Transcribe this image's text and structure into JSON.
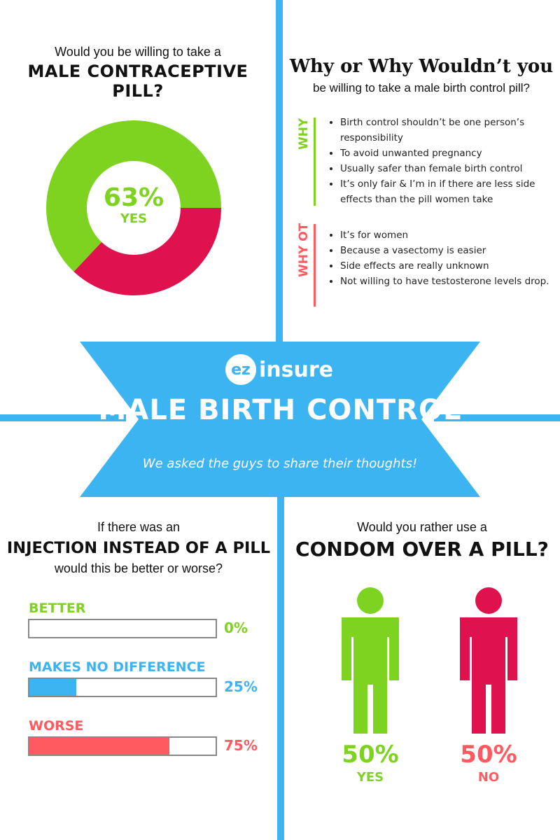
{
  "colors": {
    "green": "#7ed321",
    "red": "#e0124d",
    "blue": "#3db4f2",
    "coral": "#ff5a5f"
  },
  "q1": {
    "intro": "Would you be willing to take a",
    "title": "MALE CONTRACEPTIVE PILL?",
    "center_value": "63%",
    "center_label": "YES"
  },
  "why": {
    "title": "Why or Why Wouldn’t you",
    "subtitle": "be willing to take a male birth control pill?",
    "yes_label": "WHY",
    "yes_reasons": [
      "Birth control shouldn’t be one person’s responsibility",
      "To avoid unwanted pregnancy",
      "Usually safer than female birth control",
      "It’s only fair & I’m in if there are less side effects than the pill women take"
    ],
    "no_label": "WHY OT",
    "no_reasons": [
      "It’s for women",
      "Because a vasectomy is easier",
      "Side effects are really unknown",
      "Not willing to have testosterone levels drop."
    ]
  },
  "banner": {
    "logo_ez": "ez",
    "logo_name": "insure",
    "title": "MALE BIRTH CONTROL",
    "subtitle": "We asked the guys to share their thoughts!"
  },
  "injection": {
    "intro": "If there was an",
    "title": "INJECTION INSTEAD OF A PILL",
    "subtitle": "would this be better or worse?"
  },
  "condom": {
    "intro": "Would you rather use a",
    "title": "CONDOM OVER A PILL?"
  },
  "chart_data": [
    {
      "type": "pie",
      "title": "MALE CONTRACEPTIVE PILL?",
      "categories": [
        "Yes",
        "No"
      ],
      "values": [
        63,
        37
      ],
      "colors": [
        "#7ed321",
        "#e0124d"
      ],
      "donut": true
    },
    {
      "type": "bar",
      "title": "INJECTION INSTEAD OF A PILL",
      "categories": [
        "BETTER",
        "MAKES NO DIFFERENCE",
        "WORSE"
      ],
      "values": [
        0,
        25,
        75
      ],
      "value_labels": [
        "0%",
        "25%",
        "75%"
      ],
      "colors": [
        "#7ed321",
        "#3db4f2",
        "#ff5a5f"
      ],
      "ylim": [
        0,
        100
      ]
    },
    {
      "type": "bar",
      "title": "CONDOM OVER A PILL?",
      "categories": [
        "YES",
        "NO"
      ],
      "values": [
        50,
        50
      ],
      "value_labels": [
        "50%",
        "50%"
      ],
      "colors": [
        "#7ed321",
        "#e0124d"
      ]
    }
  ]
}
